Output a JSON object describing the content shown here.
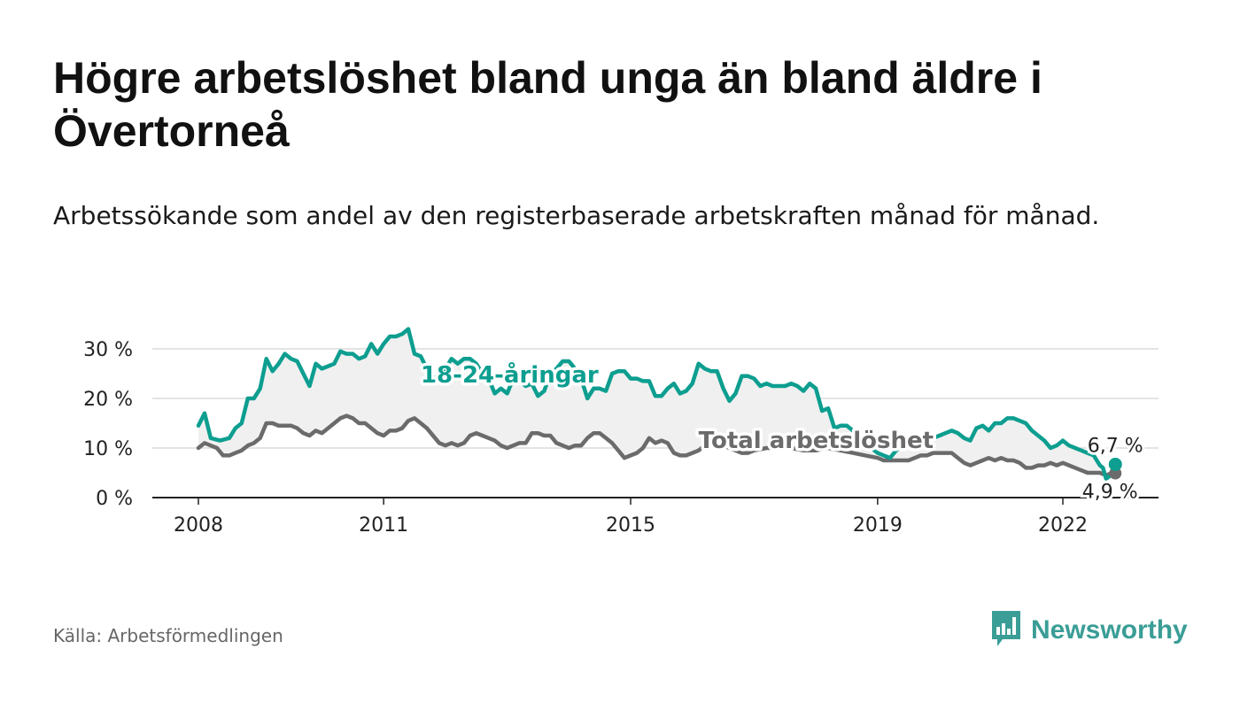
{
  "title": "Högre arbetslöshet bland unga än bland äldre i Övertorneå",
  "subtitle": "Arbetssökande som andel av den registerbaserade arbetskraften månad för månad.",
  "source": "Källa: Arbetsförmedlingen",
  "logo": {
    "text": "Newsworthy",
    "icon": "bar-chart-speech-bubble-icon",
    "color": "#3a9d96"
  },
  "colors": {
    "youth": "#0d9e90",
    "total": "#6b6b6b",
    "band": "#f0f0f0",
    "grid": "#dcdcdc"
  },
  "chart_data": {
    "type": "line",
    "title": "Högre arbetslöshet bland unga än bland äldre i Övertorneå",
    "ylim": [
      0,
      35
    ],
    "xlim": [
      2007.9,
      2023.0
    ],
    "yticks": [
      0,
      10,
      20,
      30
    ],
    "ytick_labels": [
      "0 %",
      "10 %",
      "20 %",
      "30 %"
    ],
    "xticks": [
      2008,
      2011,
      2015,
      2019,
      2022
    ],
    "xtick_labels": [
      "2008",
      "2011",
      "2015",
      "2019",
      "2022"
    ],
    "series": [
      {
        "name": "18-24-åringar",
        "end_label": "6,7 %",
        "points": [
          [
            2008.0,
            14.5
          ],
          [
            2008.1,
            17
          ],
          [
            2008.2,
            12
          ],
          [
            2008.35,
            11.5
          ],
          [
            2008.5,
            12
          ],
          [
            2008.6,
            14
          ],
          [
            2008.7,
            15
          ],
          [
            2008.8,
            20
          ],
          [
            2008.9,
            20
          ],
          [
            2009.0,
            22
          ],
          [
            2009.1,
            28
          ],
          [
            2009.2,
            25.5
          ],
          [
            2009.3,
            27
          ],
          [
            2009.4,
            29
          ],
          [
            2009.5,
            28
          ],
          [
            2009.6,
            27.5
          ],
          [
            2009.7,
            25
          ],
          [
            2009.8,
            22.5
          ],
          [
            2009.9,
            27
          ],
          [
            2010.0,
            26
          ],
          [
            2010.1,
            26.5
          ],
          [
            2010.2,
            27
          ],
          [
            2010.3,
            29.5
          ],
          [
            2010.4,
            29
          ],
          [
            2010.5,
            29
          ],
          [
            2010.6,
            28
          ],
          [
            2010.7,
            28.5
          ],
          [
            2010.8,
            31
          ],
          [
            2010.9,
            29
          ],
          [
            2011.0,
            31
          ],
          [
            2011.1,
            32.5
          ],
          [
            2011.2,
            32.5
          ],
          [
            2011.3,
            33
          ],
          [
            2011.4,
            34
          ],
          [
            2011.5,
            29
          ],
          [
            2011.6,
            28.5
          ],
          [
            2011.7,
            26
          ],
          [
            2011.8,
            23.5
          ],
          [
            2011.9,
            25
          ],
          [
            2012.0,
            26
          ],
          [
            2012.1,
            28
          ],
          [
            2012.2,
            27
          ],
          [
            2012.3,
            28
          ],
          [
            2012.4,
            28
          ],
          [
            2012.5,
            27
          ],
          [
            2012.6,
            25
          ],
          [
            2012.7,
            24
          ],
          [
            2012.8,
            21
          ],
          [
            2012.9,
            22
          ],
          [
            2013.0,
            21
          ],
          [
            2013.1,
            24
          ],
          [
            2013.2,
            23.5
          ],
          [
            2013.3,
            22.5
          ],
          [
            2013.4,
            23
          ],
          [
            2013.5,
            20.5
          ],
          [
            2013.6,
            21.5
          ],
          [
            2013.7,
            25
          ],
          [
            2013.8,
            26
          ],
          [
            2013.9,
            27.5
          ],
          [
            2014.0,
            27.5
          ],
          [
            2014.1,
            26
          ],
          [
            2014.2,
            24
          ],
          [
            2014.3,
            20
          ],
          [
            2014.4,
            22
          ],
          [
            2014.5,
            22
          ],
          [
            2014.6,
            21.5
          ],
          [
            2014.7,
            25
          ],
          [
            2014.8,
            25.5
          ],
          [
            2014.9,
            25.5
          ],
          [
            2015.0,
            24
          ],
          [
            2015.1,
            24
          ],
          [
            2015.2,
            23.5
          ],
          [
            2015.3,
            23.5
          ],
          [
            2015.4,
            20.5
          ],
          [
            2015.5,
            20.5
          ],
          [
            2015.6,
            22
          ],
          [
            2015.7,
            23
          ],
          [
            2015.8,
            21
          ],
          [
            2015.9,
            21.5
          ],
          [
            2016.0,
            23
          ],
          [
            2016.1,
            27
          ],
          [
            2016.2,
            26
          ],
          [
            2016.3,
            25.5
          ],
          [
            2016.4,
            25.5
          ],
          [
            2016.5,
            22
          ],
          [
            2016.6,
            19.5
          ],
          [
            2016.7,
            21
          ],
          [
            2016.8,
            24.5
          ],
          [
            2016.9,
            24.5
          ],
          [
            2017.0,
            24
          ],
          [
            2017.1,
            22.5
          ],
          [
            2017.2,
            23
          ],
          [
            2017.3,
            22.5
          ],
          [
            2017.4,
            22.5
          ],
          [
            2017.5,
            22.5
          ],
          [
            2017.6,
            23
          ],
          [
            2017.7,
            22.5
          ],
          [
            2017.8,
            21.5
          ],
          [
            2017.9,
            23
          ],
          [
            2018.0,
            22
          ],
          [
            2018.1,
            17.5
          ],
          [
            2018.2,
            18
          ],
          [
            2018.3,
            14
          ],
          [
            2018.4,
            14.5
          ],
          [
            2018.5,
            14.5
          ],
          [
            2018.6,
            13.5
          ],
          [
            2018.7,
            12.5
          ],
          [
            2018.8,
            11
          ],
          [
            2018.9,
            10
          ],
          [
            2019.0,
            9
          ],
          [
            2019.1,
            8.5
          ],
          [
            2019.2,
            8
          ],
          [
            2019.3,
            9.5
          ],
          [
            2019.4,
            10.5
          ],
          [
            2019.5,
            11.5
          ],
          [
            2019.6,
            11
          ],
          [
            2019.7,
            10.5
          ],
          [
            2019.8,
            11
          ],
          [
            2019.9,
            12
          ],
          [
            2020.0,
            12.5
          ],
          [
            2020.1,
            13
          ],
          [
            2020.2,
            13.5
          ],
          [
            2020.3,
            13
          ],
          [
            2020.4,
            12
          ],
          [
            2020.5,
            11.5
          ],
          [
            2020.6,
            14
          ],
          [
            2020.7,
            14.5
          ],
          [
            2020.8,
            13.5
          ],
          [
            2020.9,
            15
          ],
          [
            2021.0,
            15
          ],
          [
            2021.1,
            16
          ],
          [
            2021.2,
            16
          ],
          [
            2021.3,
            15.5
          ],
          [
            2021.4,
            15
          ],
          [
            2021.5,
            13.5
          ],
          [
            2021.6,
            12.5
          ],
          [
            2021.7,
            11.5
          ],
          [
            2021.8,
            10
          ],
          [
            2021.9,
            10.5
          ],
          [
            2022.0,
            11.5
          ],
          [
            2022.1,
            10.5
          ],
          [
            2022.2,
            10
          ],
          [
            2022.3,
            9.5
          ],
          [
            2022.4,
            9
          ],
          [
            2022.5,
            8.5
          ],
          [
            2022.55,
            7.5
          ],
          [
            2022.6,
            6.5
          ],
          [
            2022.65,
            6
          ],
          [
            2022.7,
            3.8
          ],
          [
            2022.78,
            4.5
          ],
          [
            2022.85,
            6.7
          ]
        ]
      },
      {
        "name": "Total arbetslöshet",
        "end_label": "4,9 %",
        "points": [
          [
            2008.0,
            10
          ],
          [
            2008.1,
            11
          ],
          [
            2008.2,
            10.5
          ],
          [
            2008.3,
            10
          ],
          [
            2008.4,
            8.5
          ],
          [
            2008.5,
            8.5
          ],
          [
            2008.6,
            9
          ],
          [
            2008.7,
            9.5
          ],
          [
            2008.8,
            10.5
          ],
          [
            2008.9,
            11
          ],
          [
            2009.0,
            12
          ],
          [
            2009.1,
            15
          ],
          [
            2009.2,
            15
          ],
          [
            2009.3,
            14.5
          ],
          [
            2009.4,
            14.5
          ],
          [
            2009.5,
            14.5
          ],
          [
            2009.6,
            14
          ],
          [
            2009.7,
            13
          ],
          [
            2009.8,
            12.5
          ],
          [
            2009.9,
            13.5
          ],
          [
            2010.0,
            13
          ],
          [
            2010.1,
            14
          ],
          [
            2010.2,
            15
          ],
          [
            2010.3,
            16
          ],
          [
            2010.4,
            16.5
          ],
          [
            2010.5,
            16
          ],
          [
            2010.6,
            15
          ],
          [
            2010.7,
            15
          ],
          [
            2010.8,
            14
          ],
          [
            2010.9,
            13
          ],
          [
            2011.0,
            12.5
          ],
          [
            2011.1,
            13.5
          ],
          [
            2011.2,
            13.5
          ],
          [
            2011.3,
            14
          ],
          [
            2011.4,
            15.5
          ],
          [
            2011.5,
            16
          ],
          [
            2011.6,
            15
          ],
          [
            2011.7,
            14
          ],
          [
            2011.8,
            12.5
          ],
          [
            2011.9,
            11
          ],
          [
            2012.0,
            10.5
          ],
          [
            2012.1,
            11
          ],
          [
            2012.2,
            10.5
          ],
          [
            2012.3,
            11
          ],
          [
            2012.4,
            12.5
          ],
          [
            2012.5,
            13
          ],
          [
            2012.6,
            12.5
          ],
          [
            2012.7,
            12
          ],
          [
            2012.8,
            11.5
          ],
          [
            2012.9,
            10.5
          ],
          [
            2013.0,
            10
          ],
          [
            2013.1,
            10.5
          ],
          [
            2013.2,
            11
          ],
          [
            2013.3,
            11
          ],
          [
            2013.4,
            13
          ],
          [
            2013.5,
            13
          ],
          [
            2013.6,
            12.5
          ],
          [
            2013.7,
            12.5
          ],
          [
            2013.8,
            11
          ],
          [
            2013.9,
            10.5
          ],
          [
            2014.0,
            10
          ],
          [
            2014.1,
            10.5
          ],
          [
            2014.2,
            10.5
          ],
          [
            2014.3,
            12
          ],
          [
            2014.4,
            13
          ],
          [
            2014.5,
            13
          ],
          [
            2014.6,
            12
          ],
          [
            2014.7,
            11
          ],
          [
            2014.8,
            9.5
          ],
          [
            2014.9,
            8
          ],
          [
            2015.0,
            8.5
          ],
          [
            2015.1,
            9
          ],
          [
            2015.2,
            10
          ],
          [
            2015.3,
            12
          ],
          [
            2015.4,
            11
          ],
          [
            2015.5,
            11.5
          ],
          [
            2015.6,
            11
          ],
          [
            2015.7,
            9
          ],
          [
            2015.8,
            8.5
          ],
          [
            2015.9,
            8.5
          ],
          [
            2016.0,
            9
          ],
          [
            2016.1,
            9.5
          ],
          [
            2016.2,
            10.5
          ],
          [
            2016.3,
            11
          ],
          [
            2016.4,
            11
          ],
          [
            2016.5,
            10.5
          ],
          [
            2016.6,
            10
          ],
          [
            2016.7,
            9.5
          ],
          [
            2016.8,
            9
          ],
          [
            2016.9,
            9
          ],
          [
            2017.0,
            9.5
          ],
          [
            2017.2,
            10
          ],
          [
            2017.4,
            10
          ],
          [
            2017.6,
            10
          ],
          [
            2017.8,
            9.5
          ],
          [
            2018.0,
            9.5
          ],
          [
            2018.2,
            10
          ],
          [
            2018.4,
            9.5
          ],
          [
            2018.6,
            9
          ],
          [
            2018.8,
            8.5
          ],
          [
            2019.0,
            8
          ],
          [
            2019.1,
            7.5
          ],
          [
            2019.2,
            7.5
          ],
          [
            2019.3,
            7.5
          ],
          [
            2019.4,
            7.5
          ],
          [
            2019.5,
            7.5
          ],
          [
            2019.6,
            8
          ],
          [
            2019.7,
            8.5
          ],
          [
            2019.8,
            8.5
          ],
          [
            2019.9,
            9
          ],
          [
            2020.0,
            9
          ],
          [
            2020.1,
            9
          ],
          [
            2020.2,
            9
          ],
          [
            2020.3,
            8
          ],
          [
            2020.4,
            7
          ],
          [
            2020.5,
            6.5
          ],
          [
            2020.6,
            7
          ],
          [
            2020.7,
            7.5
          ],
          [
            2020.8,
            8
          ],
          [
            2020.9,
            7.5
          ],
          [
            2021.0,
            8
          ],
          [
            2021.1,
            7.5
          ],
          [
            2021.2,
            7.5
          ],
          [
            2021.3,
            7
          ],
          [
            2021.4,
            6
          ],
          [
            2021.5,
            6
          ],
          [
            2021.6,
            6.5
          ],
          [
            2021.7,
            6.5
          ],
          [
            2021.8,
            7
          ],
          [
            2021.9,
            6.5
          ],
          [
            2022.0,
            7
          ],
          [
            2022.1,
            6.5
          ],
          [
            2022.2,
            6
          ],
          [
            2022.3,
            5.5
          ],
          [
            2022.4,
            5
          ],
          [
            2022.5,
            5
          ],
          [
            2022.6,
            5
          ],
          [
            2022.7,
            4.5
          ],
          [
            2022.8,
            5
          ],
          [
            2022.85,
            4.9
          ]
        ]
      }
    ]
  }
}
